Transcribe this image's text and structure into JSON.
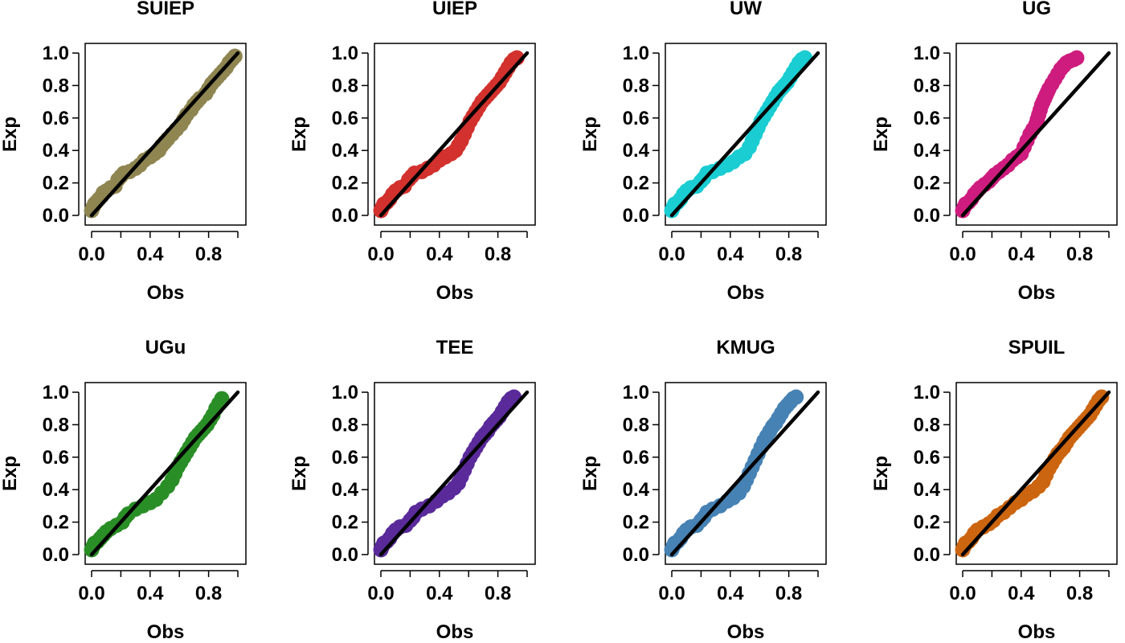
{
  "chart_data": [
    {
      "type": "scatter",
      "title": "SUIEP",
      "xlabel": "Obs",
      "ylabel": "Exp",
      "color": "#8E8551",
      "xlim": [
        0,
        1
      ],
      "ylim": [
        0,
        1
      ],
      "xticks": [
        "0.0",
        "0.4",
        "0.8"
      ],
      "yticks": [
        "0.0",
        "0.2",
        "0.4",
        "0.6",
        "0.8",
        "1.0"
      ],
      "x": [
        0.0,
        0.01,
        0.02,
        0.03,
        0.05,
        0.07,
        0.08,
        0.1,
        0.13,
        0.16,
        0.18,
        0.2,
        0.22,
        0.26,
        0.3,
        0.33,
        0.36,
        0.4,
        0.43,
        0.46,
        0.48,
        0.5,
        0.52,
        0.55,
        0.58,
        0.61,
        0.63,
        0.65,
        0.68,
        0.7,
        0.72,
        0.74,
        0.78,
        0.8,
        0.82,
        0.84,
        0.86,
        0.88,
        0.9,
        0.92,
        0.94,
        0.96,
        0.98
      ],
      "y": [
        0.03,
        0.05,
        0.07,
        0.08,
        0.1,
        0.12,
        0.14,
        0.15,
        0.17,
        0.18,
        0.22,
        0.24,
        0.26,
        0.27,
        0.29,
        0.31,
        0.34,
        0.36,
        0.38,
        0.4,
        0.43,
        0.45,
        0.47,
        0.5,
        0.53,
        0.56,
        0.59,
        0.62,
        0.65,
        0.68,
        0.7,
        0.72,
        0.75,
        0.78,
        0.81,
        0.83,
        0.85,
        0.87,
        0.89,
        0.91,
        0.94,
        0.96,
        0.98
      ],
      "ref": [
        [
          0,
          0
        ],
        [
          1,
          1
        ]
      ]
    },
    {
      "type": "scatter",
      "title": "UIEP",
      "xlabel": "Obs",
      "ylabel": "Exp",
      "color": "#D2312D",
      "xlim": [
        0,
        1
      ],
      "ylim": [
        0,
        1
      ],
      "xticks": [
        "0.0",
        "0.4",
        "0.8"
      ],
      "yticks": [
        "0.0",
        "0.2",
        "0.4",
        "0.6",
        "0.8",
        "1.0"
      ],
      "x": [
        0.0,
        0.01,
        0.02,
        0.04,
        0.06,
        0.08,
        0.1,
        0.13,
        0.16,
        0.19,
        0.21,
        0.23,
        0.28,
        0.32,
        0.36,
        0.4,
        0.44,
        0.48,
        0.51,
        0.53,
        0.55,
        0.57,
        0.59,
        0.61,
        0.63,
        0.65,
        0.67,
        0.69,
        0.71,
        0.73,
        0.75,
        0.77,
        0.79,
        0.81,
        0.83,
        0.85,
        0.87,
        0.89,
        0.91,
        0.93
      ],
      "y": [
        0.03,
        0.05,
        0.07,
        0.08,
        0.1,
        0.13,
        0.15,
        0.17,
        0.18,
        0.22,
        0.24,
        0.26,
        0.27,
        0.29,
        0.31,
        0.34,
        0.36,
        0.38,
        0.4,
        0.43,
        0.46,
        0.5,
        0.54,
        0.58,
        0.61,
        0.64,
        0.67,
        0.7,
        0.72,
        0.74,
        0.76,
        0.78,
        0.8,
        0.82,
        0.85,
        0.88,
        0.91,
        0.94,
        0.96,
        0.97
      ],
      "ref": [
        [
          0,
          0
        ],
        [
          1,
          1
        ]
      ]
    },
    {
      "type": "scatter",
      "title": "UW",
      "xlabel": "Obs",
      "ylabel": "Exp",
      "color": "#19CDD2",
      "xlim": [
        0,
        1
      ],
      "ylim": [
        0,
        1
      ],
      "xticks": [
        "0.0",
        "0.4",
        "0.8"
      ],
      "yticks": [
        "0.0",
        "0.2",
        "0.4",
        "0.6",
        "0.8",
        "1.0"
      ],
      "x": [
        0.0,
        0.01,
        0.02,
        0.04,
        0.06,
        0.08,
        0.1,
        0.13,
        0.17,
        0.2,
        0.22,
        0.24,
        0.28,
        0.33,
        0.38,
        0.42,
        0.46,
        0.5,
        0.53,
        0.55,
        0.57,
        0.59,
        0.61,
        0.63,
        0.65,
        0.67,
        0.69,
        0.71,
        0.73,
        0.75,
        0.77,
        0.79,
        0.81,
        0.83,
        0.85,
        0.87,
        0.89,
        0.91
      ],
      "y": [
        0.03,
        0.05,
        0.07,
        0.08,
        0.1,
        0.13,
        0.15,
        0.17,
        0.18,
        0.21,
        0.23,
        0.26,
        0.27,
        0.29,
        0.31,
        0.33,
        0.36,
        0.38,
        0.42,
        0.46,
        0.5,
        0.54,
        0.58,
        0.61,
        0.64,
        0.67,
        0.7,
        0.73,
        0.76,
        0.78,
        0.8,
        0.82,
        0.85,
        0.88,
        0.91,
        0.94,
        0.96,
        0.97
      ],
      "ref": [
        [
          0,
          0
        ],
        [
          1,
          1
        ]
      ]
    },
    {
      "type": "scatter",
      "title": "UG",
      "xlabel": "Obs",
      "ylabel": "Exp",
      "color": "#CE1C7E",
      "xlim": [
        0,
        1
      ],
      "ylim": [
        0,
        1
      ],
      "xticks": [
        "0.0",
        "0.4",
        "0.8"
      ],
      "yticks": [
        "0.0",
        "0.2",
        "0.4",
        "0.6",
        "0.8",
        "1.0"
      ],
      "x": [
        0.0,
        0.01,
        0.02,
        0.04,
        0.06,
        0.08,
        0.1,
        0.12,
        0.15,
        0.18,
        0.2,
        0.22,
        0.25,
        0.28,
        0.31,
        0.34,
        0.37,
        0.4,
        0.42,
        0.44,
        0.46,
        0.48,
        0.5,
        0.51,
        0.52,
        0.53,
        0.54,
        0.55,
        0.56,
        0.57,
        0.58,
        0.59,
        0.61,
        0.63,
        0.65,
        0.67,
        0.69,
        0.71,
        0.73,
        0.76,
        0.78
      ],
      "y": [
        0.03,
        0.05,
        0.07,
        0.08,
        0.1,
        0.13,
        0.15,
        0.17,
        0.19,
        0.21,
        0.23,
        0.25,
        0.27,
        0.29,
        0.31,
        0.34,
        0.36,
        0.38,
        0.42,
        0.46,
        0.5,
        0.53,
        0.56,
        0.59,
        0.62,
        0.65,
        0.68,
        0.7,
        0.72,
        0.74,
        0.76,
        0.78,
        0.81,
        0.84,
        0.87,
        0.9,
        0.92,
        0.94,
        0.95,
        0.96,
        0.97
      ],
      "ref": [
        [
          0,
          0
        ],
        [
          1,
          1
        ]
      ]
    },
    {
      "type": "scatter",
      "title": "UGu",
      "xlabel": "Obs",
      "ylabel": "Exp",
      "color": "#2A8E26",
      "xlim": [
        0,
        1
      ],
      "ylim": [
        0,
        1
      ],
      "xticks": [
        "0.0",
        "0.4",
        "0.8"
      ],
      "yticks": [
        "0.0",
        "0.2",
        "0.4",
        "0.6",
        "0.8",
        "1.0"
      ],
      "x": [
        0.0,
        0.01,
        0.02,
        0.04,
        0.06,
        0.08,
        0.1,
        0.13,
        0.17,
        0.21,
        0.23,
        0.25,
        0.3,
        0.35,
        0.4,
        0.44,
        0.48,
        0.52,
        0.55,
        0.57,
        0.59,
        0.61,
        0.63,
        0.65,
        0.67,
        0.69,
        0.71,
        0.73,
        0.75,
        0.77,
        0.79,
        0.81,
        0.83,
        0.85,
        0.87,
        0.89
      ],
      "y": [
        0.03,
        0.05,
        0.07,
        0.08,
        0.1,
        0.12,
        0.14,
        0.16,
        0.18,
        0.2,
        0.23,
        0.25,
        0.28,
        0.3,
        0.32,
        0.34,
        0.38,
        0.42,
        0.46,
        0.5,
        0.54,
        0.57,
        0.6,
        0.63,
        0.66,
        0.69,
        0.72,
        0.74,
        0.76,
        0.78,
        0.8,
        0.83,
        0.86,
        0.9,
        0.93,
        0.96
      ],
      "ref": [
        [
          0,
          0
        ],
        [
          1,
          1
        ]
      ]
    },
    {
      "type": "scatter",
      "title": "TEE",
      "xlabel": "Obs",
      "ylabel": "Exp",
      "color": "#5A2A9A",
      "xlim": [
        0,
        1
      ],
      "ylim": [
        0,
        1
      ],
      "xticks": [
        "0.0",
        "0.4",
        "0.8"
      ],
      "yticks": [
        "0.0",
        "0.2",
        "0.4",
        "0.6",
        "0.8",
        "1.0"
      ],
      "x": [
        0.0,
        0.01,
        0.02,
        0.04,
        0.06,
        0.08,
        0.1,
        0.13,
        0.17,
        0.2,
        0.22,
        0.24,
        0.28,
        0.33,
        0.38,
        0.42,
        0.46,
        0.5,
        0.53,
        0.55,
        0.57,
        0.59,
        0.61,
        0.63,
        0.65,
        0.67,
        0.69,
        0.71,
        0.73,
        0.75,
        0.77,
        0.79,
        0.81,
        0.83,
        0.85,
        0.87,
        0.89,
        0.91
      ],
      "y": [
        0.03,
        0.05,
        0.07,
        0.08,
        0.1,
        0.13,
        0.15,
        0.17,
        0.18,
        0.21,
        0.23,
        0.26,
        0.28,
        0.3,
        0.33,
        0.36,
        0.38,
        0.41,
        0.44,
        0.48,
        0.52,
        0.56,
        0.6,
        0.63,
        0.66,
        0.69,
        0.72,
        0.74,
        0.76,
        0.79,
        0.81,
        0.83,
        0.85,
        0.88,
        0.91,
        0.94,
        0.96,
        0.97
      ],
      "ref": [
        [
          0,
          0
        ],
        [
          1,
          1
        ]
      ]
    },
    {
      "type": "scatter",
      "title": "KMUG",
      "xlabel": "Obs",
      "ylabel": "Exp",
      "color": "#4682B4",
      "xlim": [
        0,
        1
      ],
      "ylim": [
        0,
        1
      ],
      "xticks": [
        "0.0",
        "0.4",
        "0.8"
      ],
      "yticks": [
        "0.0",
        "0.2",
        "0.4",
        "0.6",
        "0.8",
        "1.0"
      ],
      "x": [
        0.0,
        0.01,
        0.02,
        0.04,
        0.06,
        0.08,
        0.1,
        0.13,
        0.17,
        0.2,
        0.22,
        0.24,
        0.28,
        0.33,
        0.38,
        0.42,
        0.46,
        0.49,
        0.51,
        0.53,
        0.55,
        0.57,
        0.59,
        0.61,
        0.63,
        0.65,
        0.67,
        0.69,
        0.71,
        0.73,
        0.75,
        0.77,
        0.79,
        0.81,
        0.83,
        0.85
      ],
      "y": [
        0.03,
        0.05,
        0.07,
        0.08,
        0.1,
        0.13,
        0.15,
        0.17,
        0.18,
        0.21,
        0.23,
        0.26,
        0.28,
        0.3,
        0.33,
        0.35,
        0.38,
        0.42,
        0.46,
        0.5,
        0.54,
        0.58,
        0.62,
        0.66,
        0.7,
        0.73,
        0.76,
        0.79,
        0.81,
        0.84,
        0.87,
        0.9,
        0.92,
        0.94,
        0.96,
        0.97
      ],
      "ref": [
        [
          0,
          0
        ],
        [
          1,
          1
        ]
      ]
    },
    {
      "type": "scatter",
      "title": "SPUIL",
      "xlabel": "Obs",
      "ylabel": "Exp",
      "color": "#CC650F",
      "xlim": [
        0,
        1
      ],
      "ylim": [
        0,
        1
      ],
      "xticks": [
        "0.0",
        "0.4",
        "0.8"
      ],
      "yticks": [
        "0.0",
        "0.2",
        "0.4",
        "0.6",
        "0.8",
        "1.0"
      ],
      "x": [
        0.0,
        0.01,
        0.02,
        0.04,
        0.06,
        0.08,
        0.1,
        0.14,
        0.18,
        0.21,
        0.24,
        0.28,
        0.32,
        0.36,
        0.4,
        0.44,
        0.48,
        0.52,
        0.55,
        0.57,
        0.59,
        0.61,
        0.63,
        0.65,
        0.67,
        0.69,
        0.71,
        0.73,
        0.75,
        0.77,
        0.79,
        0.81,
        0.83,
        0.85,
        0.87,
        0.89,
        0.91,
        0.93,
        0.95
      ],
      "y": [
        0.03,
        0.05,
        0.07,
        0.08,
        0.1,
        0.13,
        0.15,
        0.17,
        0.19,
        0.21,
        0.24,
        0.26,
        0.29,
        0.32,
        0.34,
        0.37,
        0.39,
        0.42,
        0.45,
        0.49,
        0.53,
        0.56,
        0.59,
        0.62,
        0.64,
        0.66,
        0.69,
        0.72,
        0.74,
        0.76,
        0.78,
        0.8,
        0.82,
        0.84,
        0.86,
        0.89,
        0.92,
        0.95,
        0.97
      ],
      "ref": [
        [
          0,
          0
        ],
        [
          1,
          1
        ]
      ]
    }
  ]
}
